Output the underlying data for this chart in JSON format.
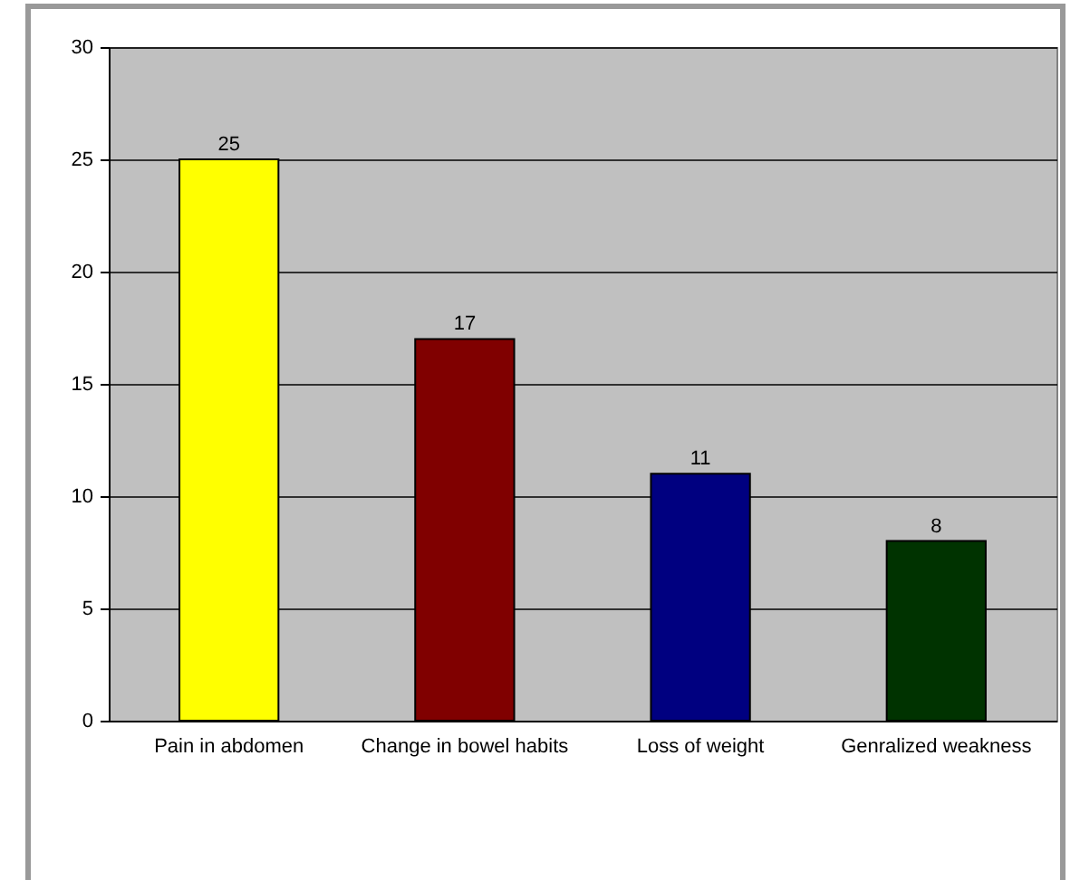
{
  "chart_data": {
    "type": "bar",
    "categories": [
      "Pain in abdomen",
      "Change in bowel habits",
      "Loss of weight",
      "Genralized weakness"
    ],
    "values": [
      25,
      17,
      11,
      8
    ],
    "colors": [
      "#ffff00",
      "#800000",
      "#000080",
      "#003300"
    ],
    "ylim": [
      0,
      30
    ],
    "yticks": [
      0,
      5,
      10,
      15,
      20,
      25,
      30
    ],
    "grid": "y",
    "data_labels": true
  }
}
